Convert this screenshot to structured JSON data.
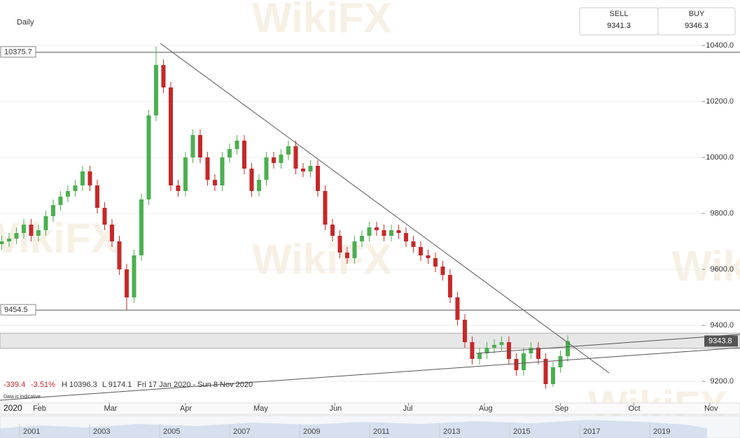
{
  "header": {
    "timeframe": "Daily",
    "sell_label": "SELL",
    "sell": "9341.3",
    "buy_label": "BUY",
    "buy": "9346.3"
  },
  "watermark": "WikiFX",
  "summary": [
    "-339.4",
    "-3.51%",
    "H 10396.3",
    "L 9174.1",
    "Fri 17 Jan 2020 - Sun 8 Nov 2020"
  ],
  "note": "Data is indicative",
  "year": "2020",
  "navigator_years": [
    "2001",
    "2003",
    "2005",
    "2007",
    "2009",
    "2011",
    "2013",
    "2015",
    "2017",
    "2019"
  ],
  "chart_data": {
    "type": "candlestick",
    "x": [
      17,
      20,
      23,
      26,
      29,
      32,
      35,
      38,
      41,
      44,
      47,
      50,
      53,
      56,
      59,
      62,
      65,
      68,
      71,
      74,
      77,
      80,
      83,
      86,
      89,
      92,
      95,
      98,
      101,
      104,
      107,
      110,
      113,
      116,
      119,
      122,
      125,
      128,
      131,
      134,
      137,
      140,
      143,
      146,
      149,
      152,
      155,
      158,
      161,
      164,
      167,
      170,
      173,
      176,
      179,
      182,
      185,
      188,
      191,
      194,
      197,
      200,
      203,
      206,
      209,
      212,
      215,
      218,
      221,
      224,
      227,
      230,
      233,
      236,
      239,
      242,
      245,
      248
    ],
    "open": [
      9690,
      9700,
      9710,
      9730,
      9760,
      9720,
      9740,
      9790,
      9830,
      9860,
      9880,
      9900,
      9950,
      9900,
      9820,
      9760,
      9700,
      9600,
      9500,
      9650,
      9850,
      10150,
      10330,
      10250,
      9900,
      9880,
      10000,
      10080,
      10000,
      9920,
      9900,
      10000,
      10030,
      10060,
      9960,
      9880,
      9920,
      10000,
      9980,
      10010,
      10040,
      9960,
      9950,
      9970,
      9880,
      9760,
      9720,
      9660,
      9640,
      9700,
      9720,
      9750,
      9740,
      9720,
      9740,
      9730,
      9700,
      9680,
      9650,
      9640,
      9610,
      9580,
      9500,
      9420,
      9340,
      9280,
      9300,
      9320,
      9330,
      9340,
      9280,
      9240,
      9300,
      9320,
      9280,
      9190,
      9250,
      9290
    ],
    "high": [
      9720,
      9730,
      9750,
      9780,
      9780,
      9760,
      9810,
      9850,
      9880,
      9900,
      9920,
      9970,
      9970,
      9920,
      9840,
      9780,
      9720,
      9620,
      9670,
      9870,
      10170,
      10396.3,
      10350,
      10270,
      9920,
      10020,
      10100,
      10100,
      10020,
      9940,
      10020,
      10050,
      10080,
      10080,
      9980,
      9940,
      10020,
      10020,
      10030,
      10060,
      10060,
      9980,
      9990,
      9990,
      9900,
      9780,
      9740,
      9680,
      9720,
      9740,
      9770,
      9770,
      9760,
      9760,
      9760,
      9750,
      9720,
      9700,
      9670,
      9660,
      9630,
      9600,
      9520,
      9440,
      9360,
      9320,
      9340,
      9350,
      9360,
      9360,
      9300,
      9320,
      9340,
      9340,
      9300,
      9270,
      9310,
      9363.8
    ],
    "low": [
      9670,
      9680,
      9690,
      9710,
      9700,
      9700,
      9720,
      9770,
      9810,
      9840,
      9860,
      9880,
      9880,
      9800,
      9740,
      9680,
      9580,
      9454.5,
      9480,
      9630,
      9830,
      10130,
      10230,
      9880,
      9860,
      9860,
      9980,
      9980,
      9900,
      9880,
      9880,
      9980,
      10010,
      9940,
      9860,
      9860,
      9900,
      9960,
      9960,
      9990,
      9940,
      9930,
      9930,
      9860,
      9740,
      9700,
      9640,
      9620,
      9620,
      9680,
      9700,
      9720,
      9700,
      9700,
      9710,
      9680,
      9660,
      9630,
      9620,
      9590,
      9560,
      9480,
      9400,
      9320,
      9260,
      9260,
      9280,
      9300,
      9310,
      9260,
      9220,
      9220,
      9280,
      9260,
      9174.1,
      9180,
      9230,
      9270
    ],
    "close": [
      9700,
      9710,
      9730,
      9760,
      9720,
      9740,
      9790,
      9830,
      9860,
      9880,
      9900,
      9950,
      9900,
      9820,
      9760,
      9700,
      9600,
      9500,
      9650,
      9850,
      10150,
      10330,
      10250,
      9900,
      9880,
      10000,
      10080,
      10000,
      9920,
      9900,
      10000,
      10030,
      10060,
      9960,
      9880,
      9920,
      10000,
      9980,
      10010,
      10040,
      9960,
      9950,
      9970,
      9880,
      9760,
      9720,
      9660,
      9640,
      9700,
      9720,
      9750,
      9740,
      9720,
      9740,
      9730,
      9700,
      9680,
      9650,
      9640,
      9610,
      9580,
      9500,
      9420,
      9340,
      9280,
      9300,
      9320,
      9330,
      9340,
      9280,
      9240,
      9300,
      9320,
      9280,
      9190,
      9250,
      9290,
      9343.8
    ],
    "up_color": "#4caf50",
    "down_color": "#c62828",
    "xlim": [
      16.3,
      318.3
    ],
    "xticks": [
      {
        "value": 32,
        "label": "Feb"
      },
      {
        "value": 61,
        "label": "Mar"
      },
      {
        "value": 92,
        "label": "Apr"
      },
      {
        "value": 122,
        "label": "May"
      },
      {
        "value": 153,
        "label": "Jun"
      },
      {
        "value": 183,
        "label": "Jul"
      },
      {
        "value": 214,
        "label": "Aug"
      },
      {
        "value": 245,
        "label": "Sep"
      },
      {
        "value": 275,
        "label": "Oct"
      },
      {
        "value": 306,
        "label": "Nov"
      }
    ],
    "ylim": [
      9125,
      10562.5
    ],
    "yticks": [
      {
        "value": 9200,
        "label": "9200.0"
      },
      {
        "value": 9400,
        "label": "9400.0"
      },
      {
        "value": 9600,
        "label": "9600.0"
      },
      {
        "value": 9800,
        "label": "9800.0"
      },
      {
        "value": 10000,
        "label": "10000.0"
      },
      {
        "value": 10200,
        "label": "10200.0"
      },
      {
        "value": 10400,
        "label": "10400.0"
      }
    ],
    "levels": [
      10375.7,
      9454.5
    ],
    "zone": [
      9318,
      9372
    ],
    "grid": true
  }
}
